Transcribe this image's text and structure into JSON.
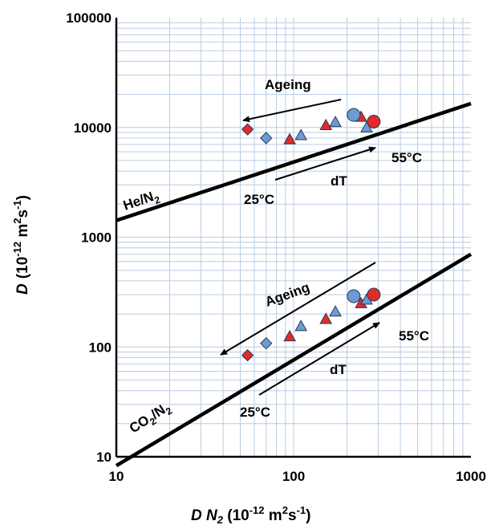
{
  "chart_data": {
    "type": "scatter",
    "xscale": "log",
    "yscale": "log",
    "xlim": [
      10,
      1000
    ],
    "ylim": [
      10,
      100000
    ],
    "grid": true,
    "xlabel": {
      "main": "D N",
      "sub": "2",
      "unit_pre": " (10",
      "unit_exp": "-12",
      "unit_mid": " m",
      "unit_exp2": "2",
      "unit_mid2": "s",
      "unit_exp3": "-1",
      "unit_post": ")"
    },
    "ylabel": {
      "main": "D",
      "unit_pre": "(10",
      "unit_exp": "-12",
      "unit_mid": " m",
      "unit_exp2": "2",
      "unit_mid2": "s",
      "unit_exp3": "-1",
      "unit_post": ")"
    },
    "xticks": [
      {
        "v": 10,
        "label": "10"
      },
      {
        "v": 100,
        "label": "100"
      },
      {
        "v": 1000,
        "label": "1000"
      }
    ],
    "yticks": [
      {
        "v": 10,
        "label": "10"
      },
      {
        "v": 100,
        "label": "100"
      },
      {
        "v": 1000,
        "label": "1000"
      },
      {
        "v": 10000,
        "label": "10000"
      },
      {
        "v": 100000,
        "label": "100000"
      }
    ],
    "colors": {
      "red": "#e02b2b",
      "blue": "#6a9bd4",
      "grid": "#b8cce4",
      "marker_edge": "#2b3a55"
    },
    "lines": [
      {
        "name": "He/N2",
        "x": [
          10,
          1000
        ],
        "y": [
          1420,
          16500
        ]
      },
      {
        "name": "CO2/N2",
        "x": [
          10,
          1000
        ],
        "y": [
          8.3,
          700
        ]
      }
    ],
    "series": [
      {
        "group": "He",
        "marker": "diamond",
        "color": "red",
        "x": [
          55
        ],
        "y": [
          9600
        ]
      },
      {
        "group": "He",
        "marker": "diamond",
        "color": "blue",
        "x": [
          70
        ],
        "y": [
          8000
        ]
      },
      {
        "group": "He",
        "marker": "triangle",
        "color": "red",
        "x": [
          95,
          152,
          240
        ],
        "y": [
          7800,
          10500,
          12500
        ]
      },
      {
        "group": "He",
        "marker": "triangle",
        "color": "blue",
        "x": [
          110,
          172,
          258
        ],
        "y": [
          8500,
          11200,
          10000
        ]
      },
      {
        "group": "He",
        "marker": "circle",
        "color": "blue",
        "x": [
          218
        ],
        "y": [
          13000
        ]
      },
      {
        "group": "He",
        "marker": "circle",
        "color": "red",
        "x": [
          283
        ],
        "y": [
          11300
        ]
      },
      {
        "group": "CO2",
        "marker": "diamond",
        "color": "red",
        "x": [
          55
        ],
        "y": [
          84
        ]
      },
      {
        "group": "CO2",
        "marker": "diamond",
        "color": "blue",
        "x": [
          70
        ],
        "y": [
          108
        ]
      },
      {
        "group": "CO2",
        "marker": "triangle",
        "color": "red",
        "x": [
          95,
          152,
          240
        ],
        "y": [
          125,
          180,
          250
        ]
      },
      {
        "group": "CO2",
        "marker": "triangle",
        "color": "blue",
        "x": [
          110,
          172,
          258
        ],
        "y": [
          155,
          210,
          270
        ]
      },
      {
        "group": "CO2",
        "marker": "circle",
        "color": "blue",
        "x": [
          218
        ],
        "y": [
          290
        ]
      },
      {
        "group": "CO2",
        "marker": "circle",
        "color": "red",
        "x": [
          283
        ],
        "y": [
          300
        ]
      }
    ],
    "annotations": {
      "he_line_label": {
        "pre": "He/N",
        "sub": "2",
        "post": ""
      },
      "co2_line_label": {
        "pre": "CO",
        "sub": "2",
        "post": "/N",
        "sub2": "2"
      },
      "he_ageing": "Ageing",
      "co2_ageing": "Ageing",
      "he_dt": "dT",
      "co2_dt": "dT",
      "he_t_low": "25°C",
      "he_t_high": "55°C",
      "co2_t_low": "25°C",
      "co2_t_high": "55°C"
    }
  }
}
